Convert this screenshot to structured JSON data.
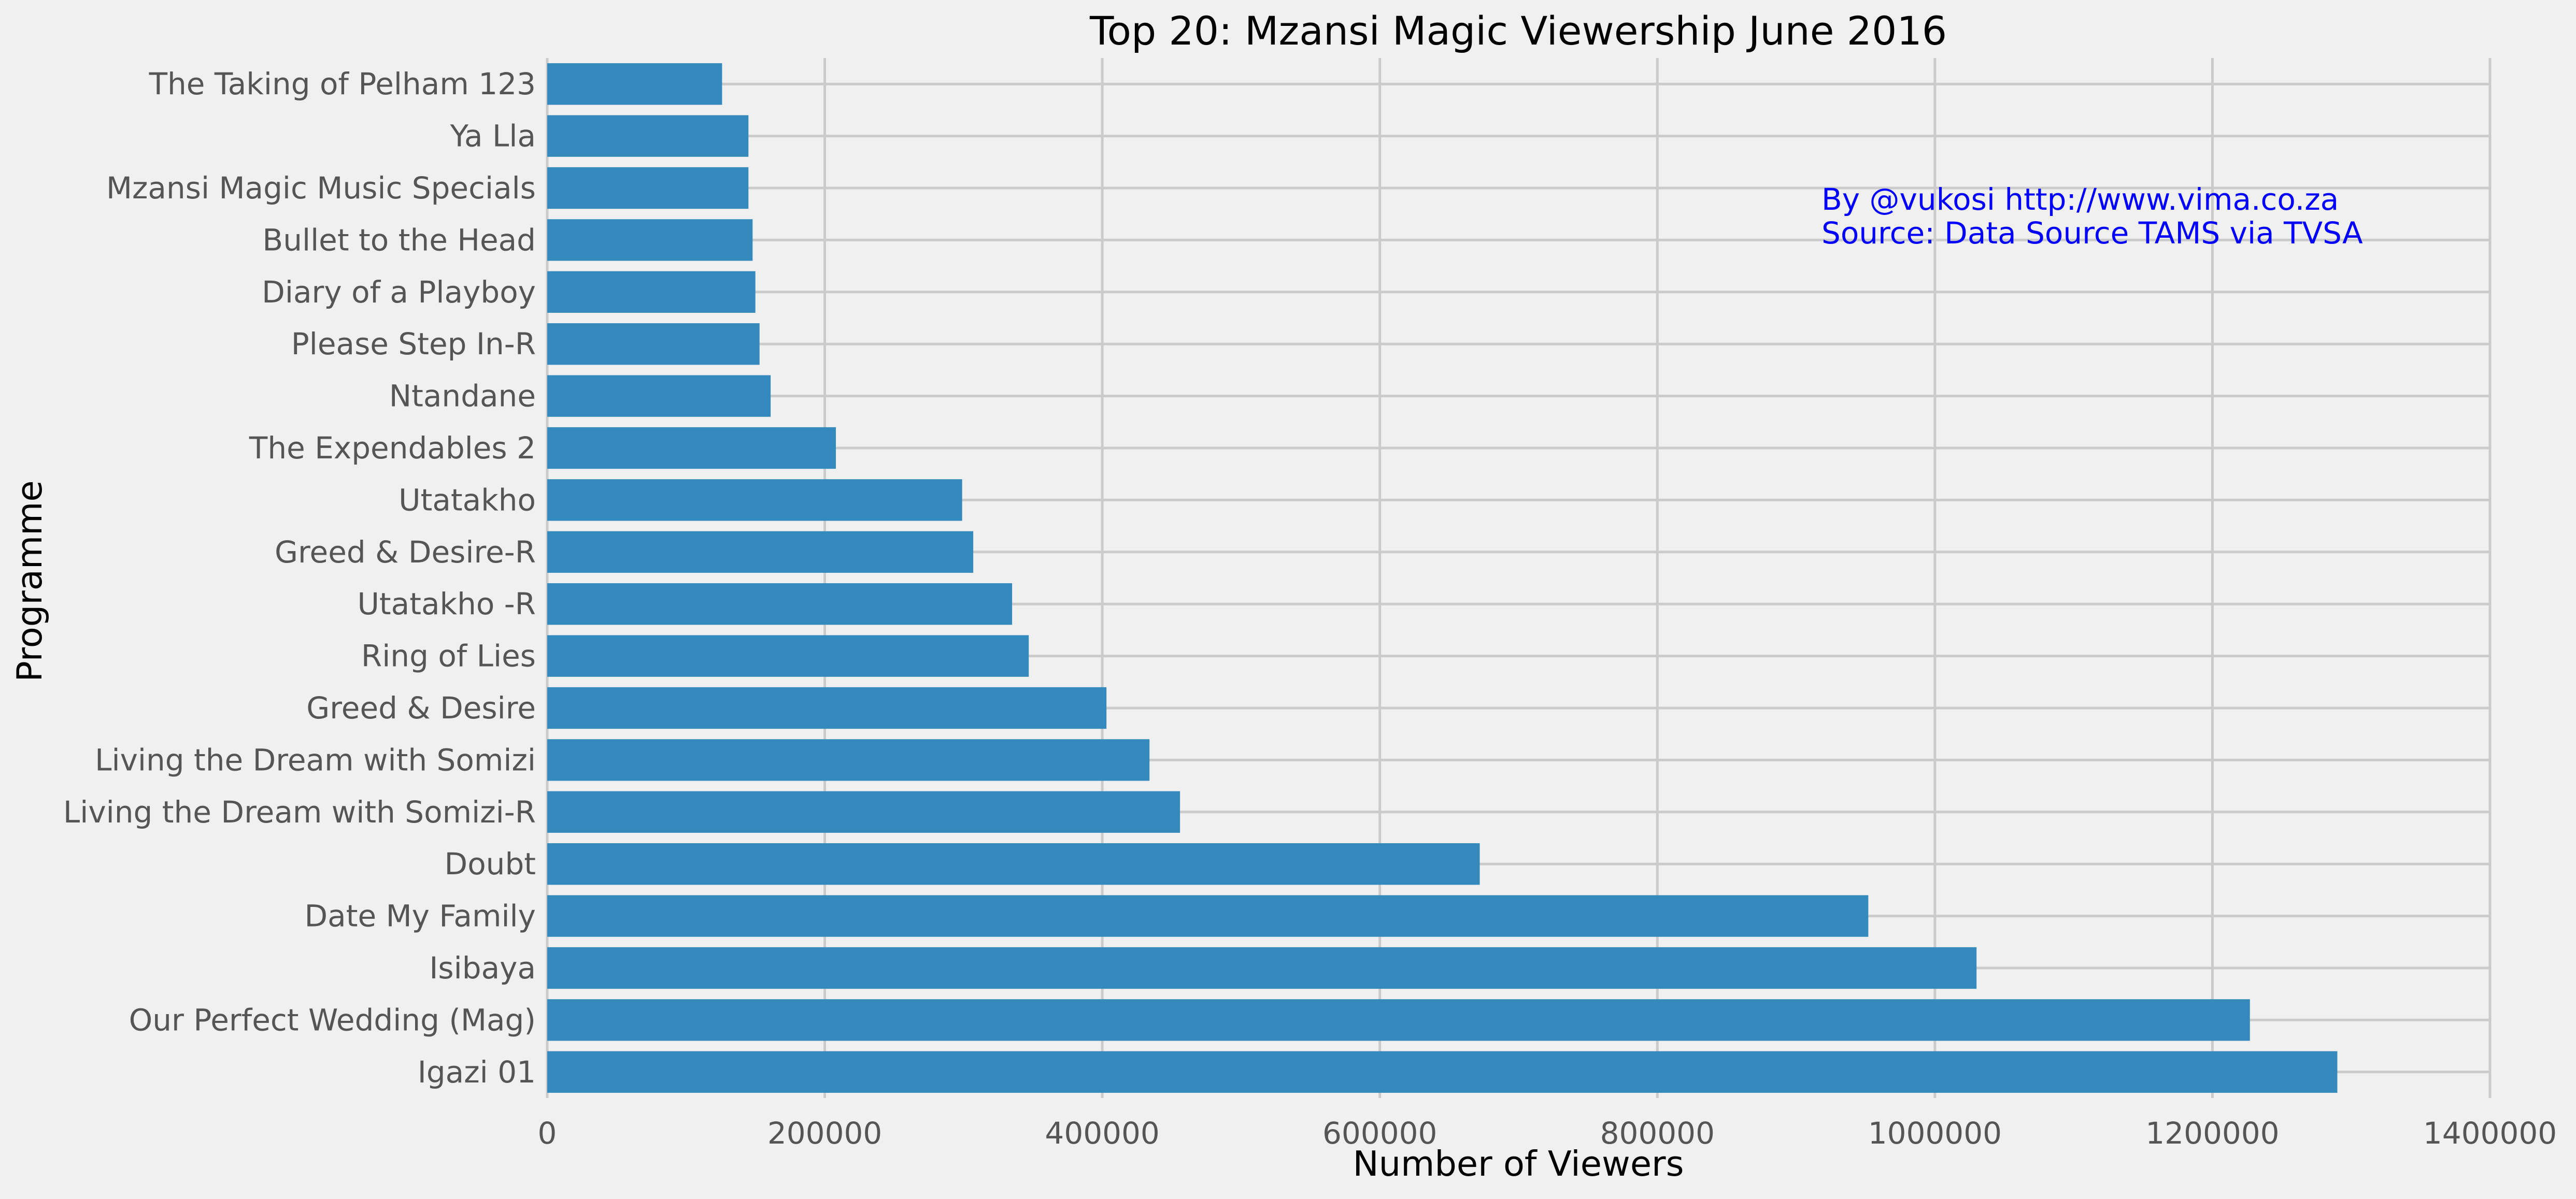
{
  "chart_data": {
    "type": "bar",
    "orientation": "horizontal",
    "title": "Top 20: Mzansi Magic Viewership June 2016",
    "xlabel": "Number of Viewers",
    "ylabel": "Programme",
    "xlim": [
      0,
      1400000
    ],
    "xticks": [
      0,
      200000,
      400000,
      600000,
      800000,
      1000000,
      1200000,
      1400000
    ],
    "xtick_labels": [
      "0",
      "200000",
      "400000",
      "600000",
      "800000",
      "1000000",
      "1200000",
      "1400000"
    ],
    "grid": true,
    "categories": [
      "Igazi 01",
      "Our Perfect Wedding (Mag)",
      "Isibaya",
      "Date My Family",
      "Doubt",
      "Living the Dream with Somizi-R",
      "Living the Dream with Somizi",
      "Greed & Desire",
      "Ring of Lies",
      "Utatakho -R",
      "Greed & Desire-R",
      "Utatakho",
      "The Expendables 2",
      "Ntandane",
      "Please Step In-R",
      "Diary of a Playboy",
      "Bullet to the Head",
      "Mzansi Magic Music Specials",
      "Ya Lla",
      "The Taking of Pelham 123"
    ],
    "values": [
      1290000,
      1227000,
      1030000,
      952000,
      672000,
      456000,
      434000,
      403000,
      347000,
      335000,
      307000,
      299000,
      208000,
      161000,
      153000,
      150000,
      148000,
      145000,
      145000,
      126000
    ],
    "annotation": [
      "By @vukosi http://www.vima.co.za",
      "Source: Data Source TAMS via TVSA"
    ]
  },
  "colors": {
    "background": "#f0f0f0",
    "bar": "#348abd",
    "grid": "#cbcbcb",
    "annotation": "#0000ff",
    "tick_text": "#555555",
    "title_text": "#000000"
  }
}
